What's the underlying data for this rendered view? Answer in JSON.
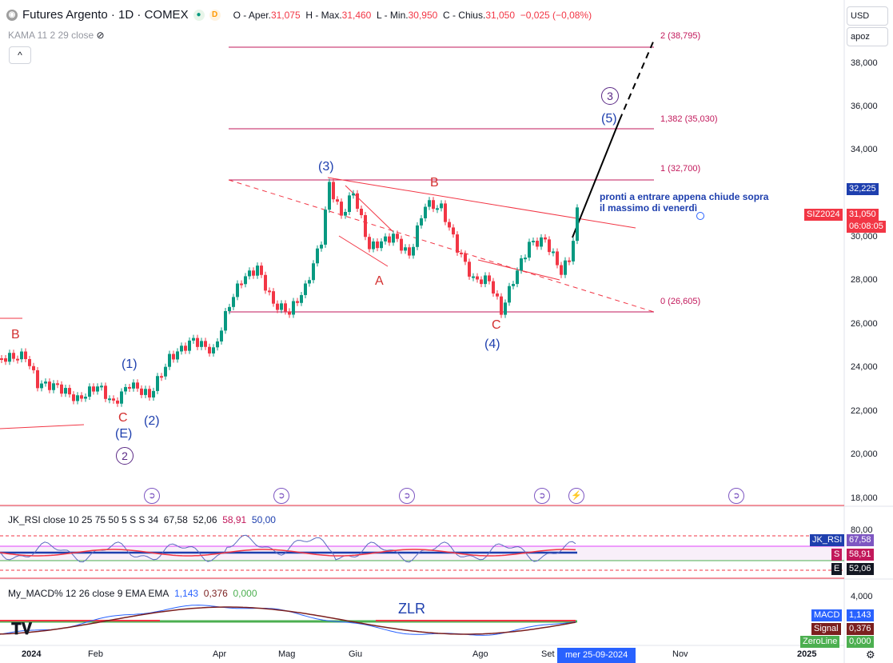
{
  "header": {
    "title": "Futures Argento · 1D · COMEX",
    "ohlc_o_label": "O - Aper.",
    "ohlc_o": "31,075",
    "ohlc_h_label": "H - Max.",
    "ohlc_h": "31,460",
    "ohlc_l_label": "L - Min.",
    "ohlc_l": "30,950",
    "ohlc_c_label": "C - Chius.",
    "ohlc_c": "31,050",
    "ohlc_chg": "−0,025 (−0,08%)",
    "badge_d": "D",
    "indicator": "KAMA 11 2 29 close",
    "collapse": "^"
  },
  "currency": "USD",
  "scale": "apoz",
  "price_axis": [
    "38,000",
    "36,000",
    "34,000",
    "32,000",
    "30,000",
    "28,000",
    "26,000",
    "24,000",
    "22,000",
    "20,000",
    "18,000"
  ],
  "price_tags": {
    "high": "32,225",
    "symbol": "SIZ2024",
    "last": "31,050",
    "countdown": "06:08:05"
  },
  "fib_levels": [
    "2 (38,795)",
    "1,382 (35,030)",
    "1 (32,700)",
    "0 (26,605)"
  ],
  "wave_labels": {
    "b_left": "B",
    "one": "(1)",
    "two": "(2)",
    "c_left": "C",
    "e": "(E)",
    "circ2": "2",
    "three": "(3)",
    "a": "A",
    "b": "B",
    "c": "C",
    "four": "(4)",
    "five": "(5)",
    "circ3": "3"
  },
  "annotation_line1": "pronti a entrare appena chiude sopra",
  "annotation_line2": "il massimo di venerdì",
  "rsi": {
    "title": "JK_RSI close 10 25 75 50 5 S S 34",
    "v1": "67,58",
    "v2": "52,06",
    "v3": "58,91",
    "v4": "50,00",
    "axis": "80,00",
    "tag_name": "JK_RSI",
    "tag_val": "67,58",
    "s_label": "S",
    "s_val": "58,91",
    "e_label": "E",
    "e_val": "52,06"
  },
  "macd": {
    "title": "My_MACD% 12 26 close 9 EMA EMA",
    "v1": "1,143",
    "v2": "0,376",
    "v3": "0,000",
    "axis": "4,000",
    "zlr": "ZLR",
    "tag_macd": "MACD",
    "tag_macd_val": "1,143",
    "tag_signal": "Signal",
    "tag_signal_val": "0,376",
    "tag_zero": "ZeroLine",
    "tag_zero_val": "0,000"
  },
  "time_axis": [
    "2024",
    "Feb",
    "Apr",
    "Mag",
    "Giu",
    "Ago",
    "Set",
    "Nov",
    "2025"
  ],
  "cursor_date": "mer 25-09-2024",
  "colors": {
    "up": "#089981",
    "down": "#f23645",
    "wave_blue": "#1e3fae",
    "wave_red": "#d32f2f",
    "fib": "#c2185b"
  }
}
